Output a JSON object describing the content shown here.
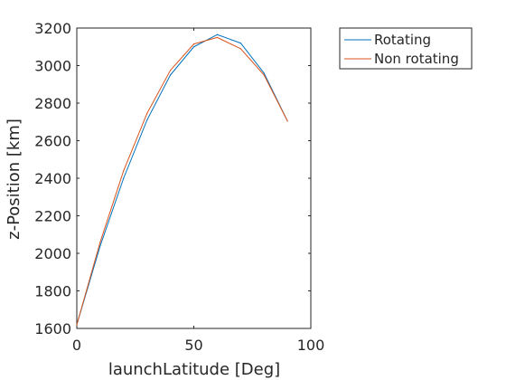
{
  "chart_data": {
    "type": "line",
    "title": "",
    "xlabel": "launchLatitude [Deg]",
    "ylabel": "z-Position [km]",
    "xlim": [
      0,
      100
    ],
    "ylim": [
      1600,
      3200
    ],
    "xticks": [
      0,
      50,
      100
    ],
    "yticks": [
      1600,
      1800,
      2000,
      2200,
      2400,
      2600,
      2800,
      3000,
      3200
    ],
    "grid": false,
    "legend_location": "outside-top-right",
    "x": [
      0,
      10,
      20,
      30,
      40,
      50,
      60,
      70,
      80,
      90
    ],
    "series": [
      {
        "name": "Rotating",
        "color": "#0072BD",
        "values": [
          1620,
          2040,
          2400,
          2710,
          2950,
          3100,
          3165,
          3120,
          2960,
          2705
        ]
      },
      {
        "name": "Non rotating",
        "color": "#D95319",
        "values": [
          1620,
          2060,
          2440,
          2745,
          2975,
          3115,
          3150,
          3090,
          2950,
          2705
        ]
      }
    ]
  }
}
